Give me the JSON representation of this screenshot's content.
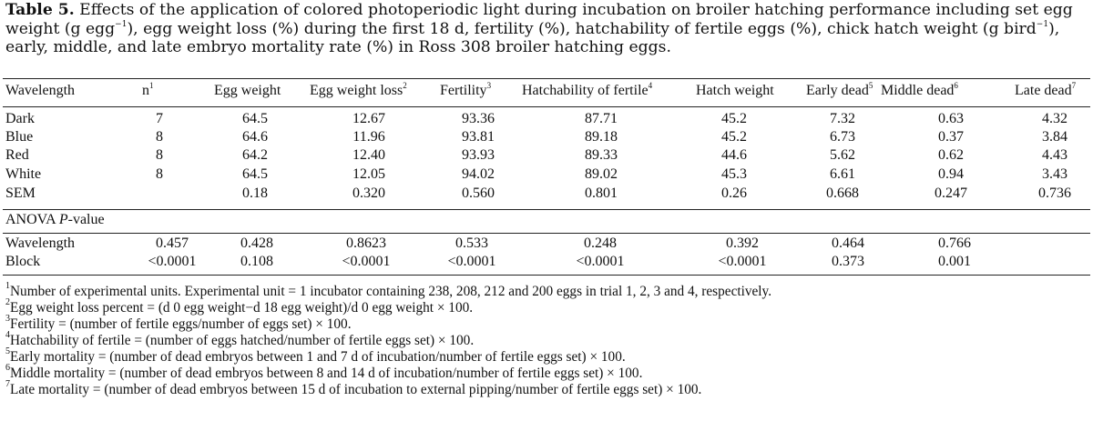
{
  "caption": {
    "label": "Table 5.",
    "line1": " Effects of the application of colored photoperiodic light during incubation on broiler hatching performance including set egg",
    "line2a": "weight (g egg",
    "line2b": "), egg weight loss (%) during the first 18 d, fertility (%), hatchability of fertile eggs (%), chick hatch weight (g bird",
    "line2c": "),",
    "line3": "early, middle, and late embryo mortality rate (%) in Ross 308 broiler hatching eggs.",
    "sup_neg1": "−1"
  },
  "columns": [
    {
      "label": "Wavelength",
      "sup": ""
    },
    {
      "label": "n",
      "sup": "1"
    },
    {
      "label": "Egg weight",
      "sup": ""
    },
    {
      "label": "Egg weight loss",
      "sup": "2"
    },
    {
      "label": "Fertility",
      "sup": "3"
    },
    {
      "label": "Hatchability of fertile",
      "sup": "4"
    },
    {
      "label": "Hatch weight",
      "sup": ""
    },
    {
      "label": "Early dead",
      "sup": "5"
    },
    {
      "label": "Middle dead",
      "sup": "6"
    },
    {
      "label": "Late dead",
      "sup": "7"
    }
  ],
  "rows": [
    [
      "Dark",
      "7",
      "64.5",
      "12.67",
      "93.36",
      "87.71",
      "45.2",
      "7.32",
      "0.63",
      "4.32"
    ],
    [
      "Blue",
      "8",
      "64.6",
      "11.96",
      "93.81",
      "89.18",
      "45.2",
      "6.73",
      "0.37",
      "3.84"
    ],
    [
      "Red",
      "8",
      "64.2",
      "12.40",
      "93.93",
      "89.33",
      "44.6",
      "5.62",
      "0.62",
      "4.43"
    ],
    [
      "White",
      "8",
      "64.5",
      "12.05",
      "94.02",
      "89.02",
      "45.3",
      "6.61",
      "0.94",
      "3.43"
    ],
    [
      "SEM",
      "",
      "0.18",
      "0.320",
      "0.560",
      "0.801",
      "0.26",
      "0.668",
      "0.247",
      "0.736"
    ]
  ],
  "anova": {
    "heading_a": "ANOVA ",
    "heading_p": "P",
    "heading_b": "-value",
    "rows": [
      [
        "Wavelength",
        "0.457",
        "0.428",
        "0.8623",
        "0.533",
        "0.248",
        "0.392",
        "0.464",
        "0.766"
      ],
      [
        "Block",
        "<0.0001",
        "0.108",
        "<0.0001",
        "<0.0001",
        "<0.0001",
        "<0.0001",
        "0.373",
        "0.001"
      ]
    ]
  },
  "footnotes": [
    {
      "mark": "1",
      "text": "Number of experimental units. Experimental unit = 1 incubator containing 238, 208, 212 and 200 eggs in trial 1, 2, 3 and 4, respectively."
    },
    {
      "mark": "2",
      "text": "Egg weight loss percent = (d 0 egg weight−d 18 egg weight)/d 0 egg weight × 100."
    },
    {
      "mark": "3",
      "text": "Fertility = (number of fertile eggs/number of eggs set) × 100."
    },
    {
      "mark": "4",
      "text": "Hatchability of fertile = (number of eggs hatched/number of fertile eggs set) × 100."
    },
    {
      "mark": "5",
      "text": "Early mortality = (number of dead embryos between 1 and 7 d of incubation/number of fertile eggs set) × 100."
    },
    {
      "mark": "6",
      "text": "Middle mortality = (number of dead embryos between 8 and 14 d of incubation/number of fertile eggs set) × 100."
    },
    {
      "mark": "7",
      "text": "Late mortality = (number of dead embryos between 15 d of incubation to external pipping/number of fertile eggs set) × 100."
    }
  ]
}
